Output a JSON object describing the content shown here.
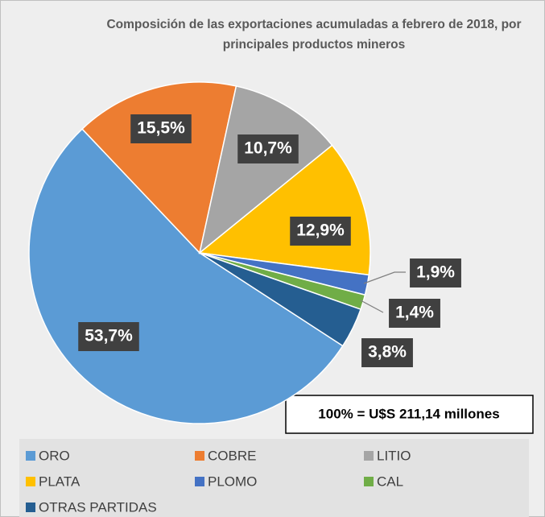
{
  "chart_data": {
    "type": "pie",
    "title": "Composición de las exportaciones acumuladas a febrero de 2018, por principales productos mineros",
    "annotation": "100% = U$S 211,14 millones",
    "categories": [
      "ORO",
      "COBRE",
      "LITIO",
      "PLATA",
      "PLOMO",
      "CAL",
      "OTRAS PARTIDAS"
    ],
    "values": [
      53.7,
      15.5,
      10.7,
      12.9,
      1.9,
      1.4,
      3.8
    ],
    "value_labels": [
      "53,7%",
      "15,5%",
      "10,7%",
      "12,9%",
      "1,9%",
      "1,4%",
      "3,8%"
    ],
    "colors": [
      "#5b9bd5",
      "#ed7d31",
      "#a5a5a5",
      "#ffc000",
      "#4472c4",
      "#70ad47",
      "#255e91"
    ]
  }
}
